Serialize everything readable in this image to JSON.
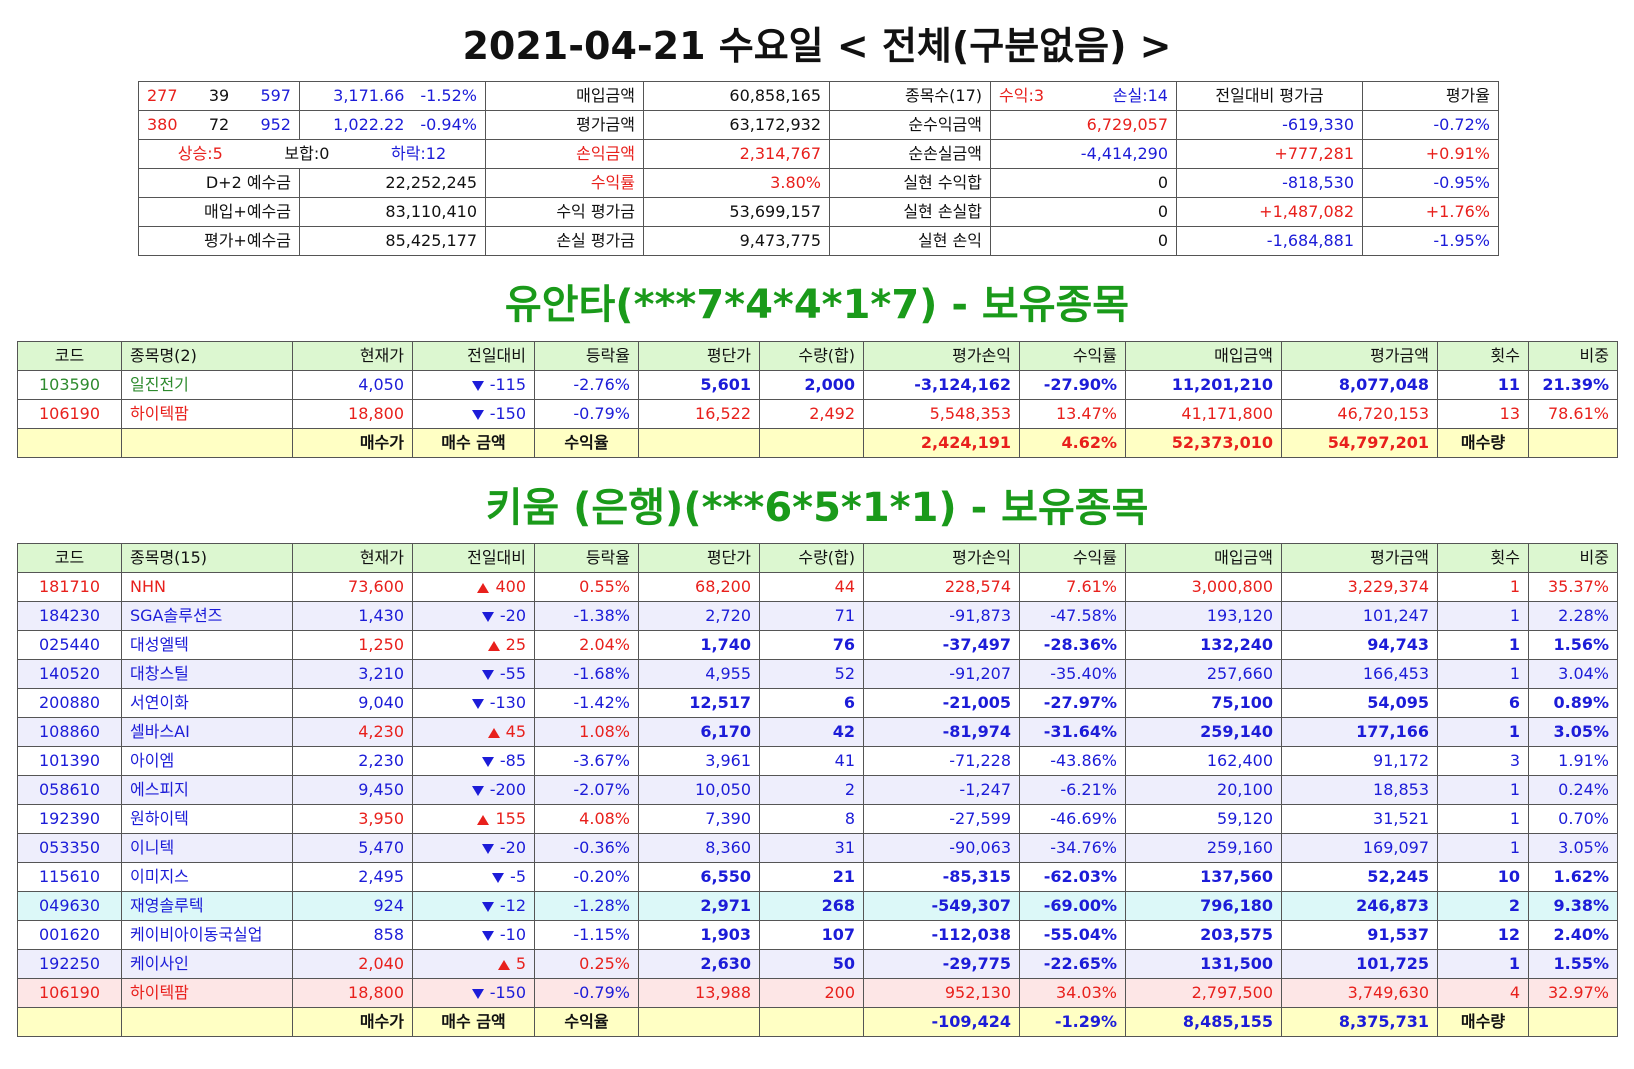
{
  "header": {
    "title": "2021-04-21 수요일 < 전체(구분없음) >"
  },
  "summary": {
    "rows": [
      [
        [
          "277",
          "39",
          "597"
        ],
        [
          "3,171.66",
          "-1.52%"
        ],
        "매입금액",
        "60,858,165",
        "종목수(17)",
        [
          "수익:3",
          "손실:14"
        ],
        "전일대비 평가금",
        "평가율"
      ],
      [
        [
          "380",
          "72",
          "952"
        ],
        [
          "1,022.22",
          "-0.94%"
        ],
        "평가금액",
        "63,172,932",
        "순수익금액",
        "6,729,057",
        "-619,330",
        "-0.72%"
      ],
      [
        [
          "상승:5",
          "보합:0",
          "하락:12"
        ],
        "손익금액",
        "2,314,767",
        "순손실금액",
        "-4,414,290",
        "+777,281",
        "+0.91%"
      ],
      [
        "D+2 예수금",
        "22,252,245",
        "수익률",
        "3.80%",
        "실현 수익합",
        "0",
        "-818,530",
        "-0.95%"
      ],
      [
        "매입+예수금",
        "83,110,410",
        "수익 평가금",
        "53,699,157",
        "실현 손실합",
        "0",
        "+1,487,082",
        "+1.76%"
      ],
      [
        "평가+예수금",
        "85,425,177",
        "손실 평가금",
        "9,473,775",
        "실현 손익",
        "0",
        "-1,684,881",
        "-1.95%"
      ]
    ]
  },
  "accounts": [
    {
      "title": "유안타(***7*4*4*1*7) - 보유종목",
      "striped": false,
      "header": [
        "코드",
        "종목명(2)",
        "현재가",
        "전일대비",
        "등락율",
        "평단가",
        "수량(합)",
        "평가손익",
        "수익률",
        "매입금액",
        "평가금액",
        "횟수",
        "비중"
      ],
      "rows": [
        {
          "code": "103590",
          "name": "일진전기",
          "price": "4,050",
          "change": "-115",
          "change_rate": "-2.76%",
          "avg_price": "5,601",
          "qty": "2,000",
          "profit": "-3,124,162",
          "profit_rate": "-27.90%",
          "buy_amount": "11,201,210",
          "eval_amount": "8,077,048",
          "count": "11",
          "weight": "21.39%",
          "name_color": "#2e8b2e",
          "price_color": "#1c1cd8",
          "bold": true
        },
        {
          "code": "106190",
          "name": "하이텍팜",
          "price": "18,800",
          "change": "-150",
          "change_rate": "-0.79%",
          "avg_price": "16,522",
          "qty": "2,492",
          "profit": "5,548,353",
          "profit_rate": "13.47%",
          "buy_amount": "41,171,800",
          "eval_amount": "46,720,153",
          "count": "13",
          "weight": "78.61%",
          "name_color": "#e8201c",
          "price_color": "#e8201c",
          "bold": false
        }
      ],
      "footer": {
        "labels": [
          "매수가",
          "매수 금액",
          "수익율"
        ],
        "profit": "2,424,191",
        "profit_rate": "4.62%",
        "buy_amount": "52,373,010",
        "eval_amount": "54,797,201",
        "qty_label": "매수량"
      }
    },
    {
      "title": "키움 (은행)(***6*5*1*1) - 보유종목",
      "striped": true,
      "header": [
        "코드",
        "종목명(15)",
        "현재가",
        "전일대비",
        "등락율",
        "평단가",
        "수량(합)",
        "평가손익",
        "수익률",
        "매입금액",
        "평가금액",
        "횟수",
        "비중"
      ],
      "rows": [
        {
          "code": "181710",
          "name": "NHN",
          "price": "73,600",
          "change": "400",
          "change_rate": "0.55%",
          "avg_price": "68,200",
          "qty": "44",
          "profit": "228,574",
          "profit_rate": "7.61%",
          "buy_amount": "3,000,800",
          "eval_amount": "3,229,374",
          "count": "1",
          "weight": "35.37%",
          "name_color": "#e8201c",
          "price_color": "#e8201c",
          "bold": false
        },
        {
          "code": "184230",
          "name": "SGA솔루션즈",
          "price": "1,430",
          "change": "-20",
          "change_rate": "-1.38%",
          "avg_price": "2,720",
          "qty": "71",
          "profit": "-91,873",
          "profit_rate": "-47.58%",
          "buy_amount": "193,120",
          "eval_amount": "101,247",
          "count": "1",
          "weight": "2.28%",
          "name_color": "#1c1cd8",
          "price_color": "#1c1cd8",
          "bold": false
        },
        {
          "code": "025440",
          "name": "대성엘텍",
          "price": "1,250",
          "change": "25",
          "change_rate": "2.04%",
          "avg_price": "1,740",
          "qty": "76",
          "profit": "-37,497",
          "profit_rate": "-28.36%",
          "buy_amount": "132,240",
          "eval_amount": "94,743",
          "count": "1",
          "weight": "1.56%",
          "name_color": "#1c1cd8",
          "price_color": "#e8201c",
          "bold": true
        },
        {
          "code": "140520",
          "name": "대창스틸",
          "price": "3,210",
          "change": "-55",
          "change_rate": "-1.68%",
          "avg_price": "4,955",
          "qty": "52",
          "profit": "-91,207",
          "profit_rate": "-35.40%",
          "buy_amount": "257,660",
          "eval_amount": "166,453",
          "count": "1",
          "weight": "3.04%",
          "name_color": "#1c1cd8",
          "price_color": "#1c1cd8",
          "bold": false
        },
        {
          "code": "200880",
          "name": "서연이화",
          "price": "9,040",
          "change": "-130",
          "change_rate": "-1.42%",
          "avg_price": "12,517",
          "qty": "6",
          "profit": "-21,005",
          "profit_rate": "-27.97%",
          "buy_amount": "75,100",
          "eval_amount": "54,095",
          "count": "6",
          "weight": "0.89%",
          "name_color": "#1c1cd8",
          "price_color": "#1c1cd8",
          "bold": true
        },
        {
          "code": "108860",
          "name": "셀바스AI",
          "price": "4,230",
          "change": "45",
          "change_rate": "1.08%",
          "avg_price": "6,170",
          "qty": "42",
          "profit": "-81,974",
          "profit_rate": "-31.64%",
          "buy_amount": "259,140",
          "eval_amount": "177,166",
          "count": "1",
          "weight": "3.05%",
          "name_color": "#1c1cd8",
          "price_color": "#e8201c",
          "bold": true
        },
        {
          "code": "101390",
          "name": "아이엠",
          "price": "2,230",
          "change": "-85",
          "change_rate": "-3.67%",
          "avg_price": "3,961",
          "qty": "41",
          "profit": "-71,228",
          "profit_rate": "-43.86%",
          "buy_amount": "162,400",
          "eval_amount": "91,172",
          "count": "3",
          "weight": "1.91%",
          "name_color": "#1c1cd8",
          "price_color": "#1c1cd8",
          "bold": false
        },
        {
          "code": "058610",
          "name": "에스피지",
          "price": "9,450",
          "change": "-200",
          "change_rate": "-2.07%",
          "avg_price": "10,050",
          "qty": "2",
          "profit": "-1,247",
          "profit_rate": "-6.21%",
          "buy_amount": "20,100",
          "eval_amount": "18,853",
          "count": "1",
          "weight": "0.24%",
          "name_color": "#1c1cd8",
          "price_color": "#1c1cd8",
          "bold": false
        },
        {
          "code": "192390",
          "name": "원하이텍",
          "price": "3,950",
          "change": "155",
          "change_rate": "4.08%",
          "avg_price": "7,390",
          "qty": "8",
          "profit": "-27,599",
          "profit_rate": "-46.69%",
          "buy_amount": "59,120",
          "eval_amount": "31,521",
          "count": "1",
          "weight": "0.70%",
          "name_color": "#1c1cd8",
          "price_color": "#e8201c",
          "bold": false
        },
        {
          "code": "053350",
          "name": "이니텍",
          "price": "5,470",
          "change": "-20",
          "change_rate": "-0.36%",
          "avg_price": "8,360",
          "qty": "31",
          "profit": "-90,063",
          "profit_rate": "-34.76%",
          "buy_amount": "259,160",
          "eval_amount": "169,097",
          "count": "1",
          "weight": "3.05%",
          "name_color": "#1c1cd8",
          "price_color": "#1c1cd8",
          "bold": false
        },
        {
          "code": "115610",
          "name": "이미지스",
          "price": "2,495",
          "change": "-5",
          "change_rate": "-0.20%",
          "avg_price": "6,550",
          "qty": "21",
          "profit": "-85,315",
          "profit_rate": "-62.03%",
          "buy_amount": "137,560",
          "eval_amount": "52,245",
          "count": "10",
          "weight": "1.62%",
          "name_color": "#1c1cd8",
          "price_color": "#1c1cd8",
          "bold": true
        },
        {
          "code": "049630",
          "name": "재영솔루텍",
          "price": "924",
          "change": "-12",
          "change_rate": "-1.28%",
          "avg_price": "2,971",
          "qty": "268",
          "profit": "-549,307",
          "profit_rate": "-69.00%",
          "buy_amount": "796,180",
          "eval_amount": "246,873",
          "count": "2",
          "weight": "9.38%",
          "name_color": "#1c1cd8",
          "price_color": "#1c1cd8",
          "bold": true,
          "background": "#dcf8f8"
        },
        {
          "code": "001620",
          "name": "케이비아이동국실업",
          "price": "858",
          "change": "-10",
          "change_rate": "-1.15%",
          "avg_price": "1,903",
          "qty": "107",
          "profit": "-112,038",
          "profit_rate": "-55.04%",
          "buy_amount": "203,575",
          "eval_amount": "91,537",
          "count": "12",
          "weight": "2.40%",
          "name_color": "#1c1cd8",
          "price_color": "#1c1cd8",
          "bold": true
        },
        {
          "code": "192250",
          "name": "케이사인",
          "price": "2,040",
          "change": "5",
          "change_rate": "0.25%",
          "avg_price": "2,630",
          "qty": "50",
          "profit": "-29,775",
          "profit_rate": "-22.65%",
          "buy_amount": "131,500",
          "eval_amount": "101,725",
          "count": "1",
          "weight": "1.55%",
          "name_color": "#1c1cd8",
          "price_color": "#e8201c",
          "bold": true
        },
        {
          "code": "106190",
          "name": "하이텍팜",
          "price": "18,800",
          "change": "-150",
          "change_rate": "-0.79%",
          "avg_price": "13,988",
          "qty": "200",
          "profit": "952,130",
          "profit_rate": "34.03%",
          "buy_amount": "2,797,500",
          "eval_amount": "3,749,630",
          "count": "4",
          "weight": "32.97%",
          "name_color": "#e8201c",
          "price_color": "#e8201c",
          "bold": false,
          "background": "#fde6e6"
        }
      ],
      "footer": {
        "labels": [
          "매수가",
          "매수 금액",
          "수익율"
        ],
        "profit": "-109,424",
        "profit_rate": "-1.29%",
        "buy_amount": "8,485,155",
        "eval_amount": "8,375,731",
        "qty_label": "매수량"
      }
    }
  ]
}
